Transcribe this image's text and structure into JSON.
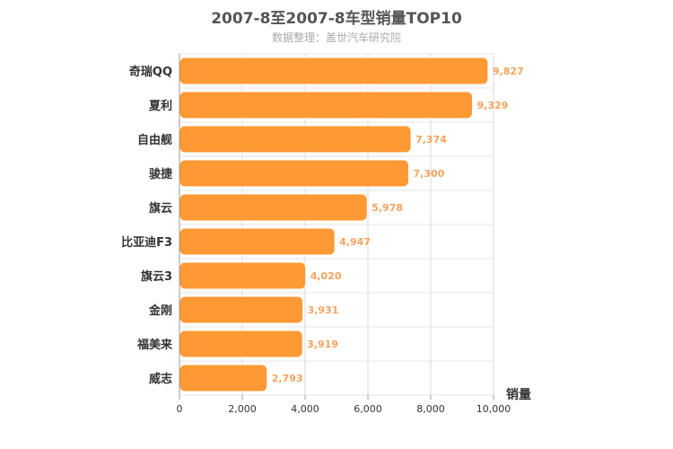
{
  "chart_data": {
    "type": "bar",
    "orientation": "horizontal",
    "title": "2007-8至2007-8车型销量TOP10",
    "subtitle": "数据整理：盖世汽车研究院",
    "categories": [
      "奇瑞QQ",
      "夏利",
      "自由舰",
      "骏捷",
      "旗云",
      "比亚迪F3",
      "旗云3",
      "金刚",
      "福美来",
      "威志"
    ],
    "values": [
      9827,
      9329,
      7374,
      7300,
      5978,
      4947,
      4020,
      3931,
      3919,
      2793
    ],
    "value_labels": [
      "9,827",
      "9,329",
      "7,374",
      "7,300",
      "5,978",
      "4,947",
      "4,020",
      "3,931",
      "3,919",
      "2,793"
    ],
    "xlabel": "销量",
    "ylabel": "",
    "xlim": [
      0,
      10000
    ],
    "xticks": [
      0,
      2000,
      4000,
      6000,
      8000,
      10000
    ],
    "xtick_labels": [
      "0",
      "2,000",
      "4,000",
      "6,000",
      "8,000",
      "10,000"
    ],
    "grid": true,
    "bar_color": "#ff9933",
    "label_color": "#f7a35c"
  }
}
